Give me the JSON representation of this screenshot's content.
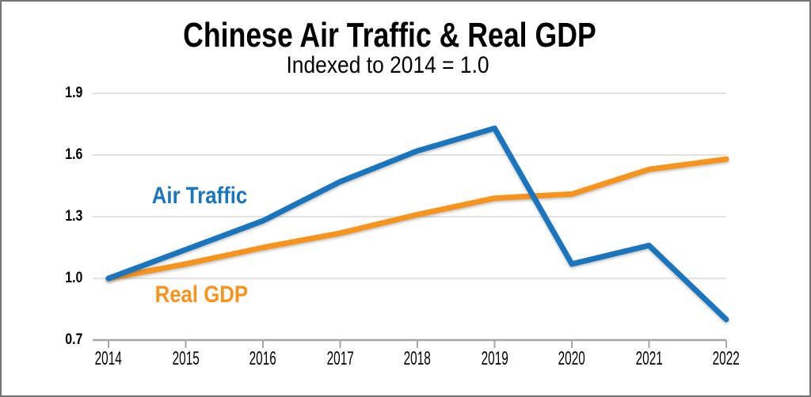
{
  "chart_data": {
    "type": "line",
    "title": "Chinese Air Traffic & Real GDP",
    "subtitle": "Indexed to 2014 = 1.0",
    "x": [
      2014,
      2015,
      2016,
      2017,
      2018,
      2019,
      2020,
      2021,
      2022
    ],
    "series": [
      {
        "name": "Air Traffic",
        "color": "#1B75BC",
        "values": [
          1.0,
          1.14,
          1.28,
          1.47,
          1.62,
          1.73,
          1.07,
          1.16,
          0.8
        ]
      },
      {
        "name": "Real GDP",
        "color": "#F7941E",
        "values": [
          1.0,
          1.07,
          1.15,
          1.22,
          1.31,
          1.39,
          1.41,
          1.53,
          1.58
        ]
      }
    ],
    "xlabel": "",
    "ylabel": "",
    "ylim": [
      0.7,
      1.9
    ],
    "yticks": [
      0.7,
      1.0,
      1.3,
      1.6,
      1.9
    ],
    "grid": true,
    "legend_position": "inline-line-labels",
    "grid_color": "#D9D9D9",
    "axis_color": "#A6A6A6",
    "text_color": "#000000",
    "line_width": 7
  }
}
